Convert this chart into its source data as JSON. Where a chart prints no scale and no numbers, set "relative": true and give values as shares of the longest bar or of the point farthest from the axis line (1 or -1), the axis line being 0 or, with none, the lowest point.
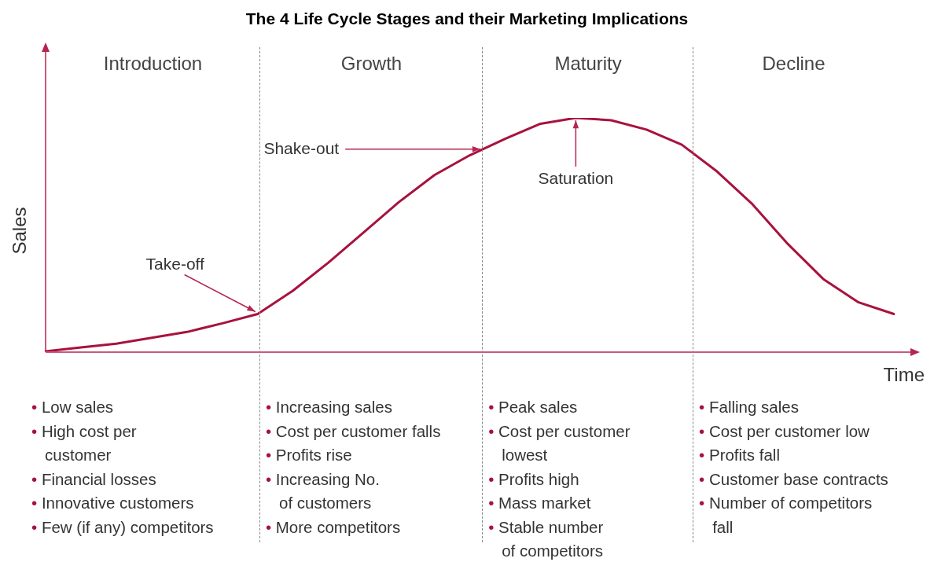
{
  "chart_data": {
    "type": "line",
    "title": "The 4 Life Cycle Stages and their Marketing Implications",
    "xlabel": "Time",
    "ylabel": "Sales",
    "relative": true,
    "legend": false,
    "marker": "none",
    "categories": [
      null,
      null,
      null,
      null,
      null,
      null,
      null,
      null,
      null,
      null,
      null,
      null,
      null,
      null,
      null,
      null,
      null,
      null,
      null,
      null,
      null,
      null,
      null,
      null,
      null
    ],
    "series": [
      {
        "color": "#a8123e",
        "values": [
          0,
          0.017,
          0.033,
          0.058,
          0.083,
          0.12,
          0.16,
          0.26,
          0.38,
          0.51,
          0.64,
          0.755,
          0.84,
          0.91,
          0.975,
          1,
          0.99,
          0.95,
          0.885,
          0.77,
          0.63,
          0.46,
          0.31,
          0.21,
          0.16
        ]
      }
    ],
    "annotations": [
      "Introduction",
      "Growth",
      "Maturity",
      "Decline",
      "Take-off",
      "Shake-out",
      "Saturation",
      "• Low sales\n• High cost per\n   customer\n• Financial losses\n• Innovative customers\n• Few (if any) competitors",
      "• Increasing sales\n• Cost per customer falls\n• Profits rise\n• Increasing No.\n   of customers\n• More competitors",
      "• Peak sales\n• Cost per customer\n   lowest\n• Profits high\n• Mass market\n• Stable number\n   of competitors",
      "• Falling sales\n• Cost per customer low\n• Profits fall\n• Customer base contracts\n• Number of competitors\n   fall"
    ]
  }
}
